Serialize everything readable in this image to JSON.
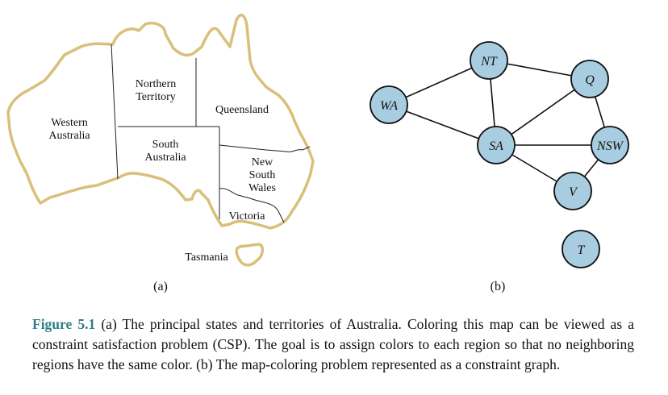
{
  "map": {
    "regions": [
      {
        "id": "wa",
        "lines": [
          "Western",
          "Australia"
        ]
      },
      {
        "id": "nt",
        "lines": [
          "Northern",
          "Territory"
        ]
      },
      {
        "id": "q",
        "lines": [
          "Queensland"
        ]
      },
      {
        "id": "sa",
        "lines": [
          "South",
          "Australia"
        ]
      },
      {
        "id": "nsw",
        "lines": [
          "New",
          "South",
          "Wales"
        ]
      },
      {
        "id": "v",
        "lines": [
          "Victoria"
        ]
      },
      {
        "id": "t",
        "lines": [
          "Tasmania"
        ]
      }
    ],
    "outline_color": "#d9c07a",
    "sublabel": "(a)"
  },
  "graph": {
    "nodes": [
      {
        "id": "NT",
        "label": "NT"
      },
      {
        "id": "Q",
        "label": "Q"
      },
      {
        "id": "WA",
        "label": "WA"
      },
      {
        "id": "SA",
        "label": "SA"
      },
      {
        "id": "NSW",
        "label": "NSW"
      },
      {
        "id": "V",
        "label": "V"
      },
      {
        "id": "T",
        "label": "T"
      }
    ],
    "edges": [
      [
        "WA",
        "NT"
      ],
      [
        "WA",
        "SA"
      ],
      [
        "NT",
        "SA"
      ],
      [
        "NT",
        "Q"
      ],
      [
        "SA",
        "Q"
      ],
      [
        "SA",
        "NSW"
      ],
      [
        "SA",
        "V"
      ],
      [
        "Q",
        "NSW"
      ],
      [
        "NSW",
        "V"
      ]
    ],
    "node_fill": "#a9cde0",
    "sublabel": "(b)"
  },
  "caption": {
    "figure_number": "Figure 5.1",
    "text": "(a) The principal states and territories of Australia. Coloring this map can be viewed as a constraint satisfaction problem (CSP). The goal is to assign colors to each region so that no neighboring regions have the same color. (b) The map-coloring problem represented as a constraint graph."
  }
}
